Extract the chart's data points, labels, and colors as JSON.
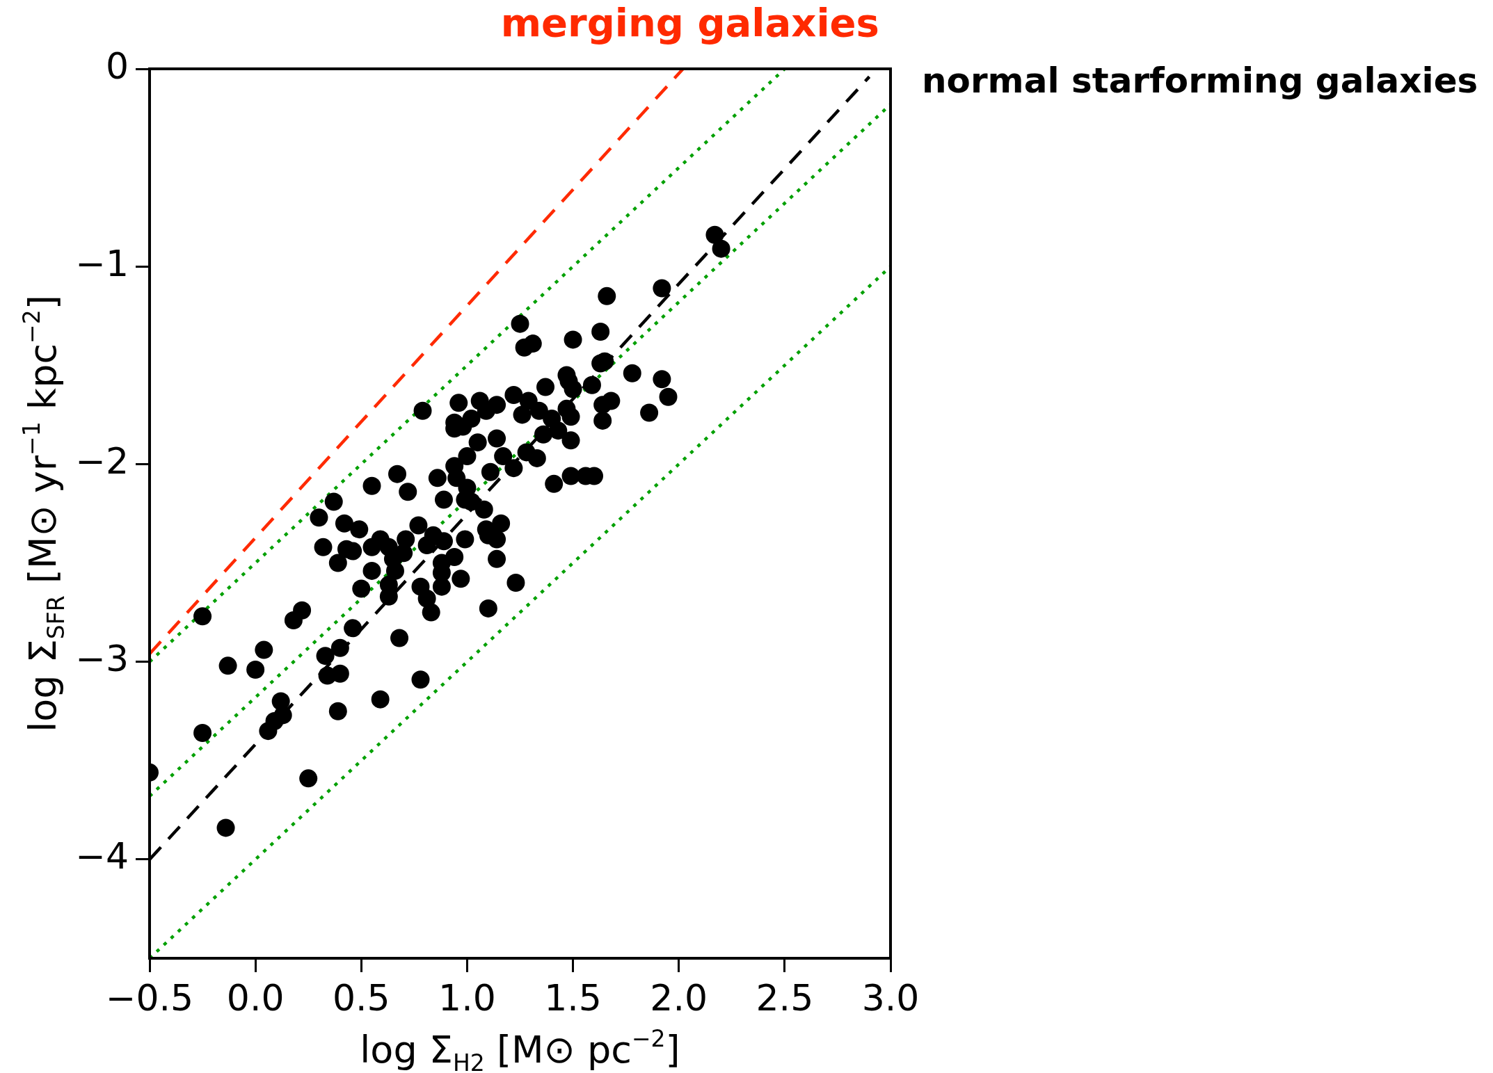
{
  "chart_data": {
    "type": "scatter",
    "xlabel": "log Σ$_{H2}$ [M⊙ pc$^{−2}$]",
    "ylabel": "log Σ$_{SFR}$ [M⊙ yr$^{−1}$ kpc$^{−2}$]",
    "xlim": [
      -0.5,
      3.0
    ],
    "ylim": [
      -4.5,
      0
    ],
    "xticks": [
      {
        "value": -0.5,
        "label": "−0.5"
      },
      {
        "value": 0,
        "label": "0.0"
      },
      {
        "value": 0.5,
        "label": "0.5"
      },
      {
        "value": 1,
        "label": "1.0"
      },
      {
        "value": 1.5,
        "label": "1.5"
      },
      {
        "value": 2,
        "label": "2.0"
      },
      {
        "value": 2.5,
        "label": "2.5"
      },
      {
        "value": 3,
        "label": "3.0"
      }
    ],
    "yticks": [
      {
        "value": -4,
        "label": "−4"
      },
      {
        "value": -3,
        "label": "−3"
      },
      {
        "value": -2,
        "label": "−2"
      },
      {
        "value": -1,
        "label": "−1"
      },
      {
        "value": 0,
        "label": "0"
      }
    ],
    "grid": false,
    "series": [
      {
        "color": "#000000",
        "marker": "circle",
        "x": [
          2.17,
          2.2,
          1.92,
          1.66,
          1.25,
          1.63,
          1.5,
          1.27,
          1.31,
          1.65,
          1.63,
          1.78,
          1.92,
          1.47,
          1.48,
          1.5,
          1.37,
          1.59,
          1.95,
          1.22,
          1.29,
          1.68,
          1.64,
          1.86,
          1.64,
          1.47,
          1.49,
          1.26,
          1.34,
          1.4,
          1.43,
          1.36,
          1.49,
          1.06,
          1.14,
          1.09,
          0.96,
          0.79,
          1.02,
          0.94,
          0.94,
          0.98,
          1.05,
          1.14,
          1.17,
          1.22,
          1.28,
          1.33,
          1.0,
          0.94,
          0.95,
          1.11,
          0.86,
          1.0,
          0.99,
          1.02,
          0.89,
          1.08,
          1.41,
          1.49,
          1.56,
          1.6,
          0.67,
          0.72,
          0.55,
          0.37,
          0.3,
          0.42,
          0.49,
          0.32,
          0.43,
          0.46,
          0.39,
          0.55,
          0.59,
          0.63,
          0.71,
          0.77,
          0.7,
          0.65,
          0.66,
          0.55,
          0.63,
          0.63,
          0.5,
          0.84,
          0.81,
          0.89,
          0.99,
          1.09,
          1.16,
          1.1,
          1.14,
          1.14,
          0.94,
          0.88,
          0.88,
          0.97,
          0.78,
          0.88,
          0.81,
          0.83,
          1.23,
          1.1,
          0.68,
          0.46,
          0.4,
          0.33,
          0.34,
          0.4,
          0.39,
          0.59,
          0.78,
          0.22,
          0.18,
          -0.25,
          -0.13,
          0.0,
          0.04,
          0.12,
          0.13,
          0.09,
          0.06,
          -0.25,
          0.25,
          -0.14,
          -0.5
        ],
        "values": [
          -0.84,
          -0.91,
          -1.11,
          -1.15,
          -1.29,
          -1.33,
          -1.37,
          -1.41,
          -1.39,
          -1.48,
          -1.49,
          -1.54,
          -1.57,
          -1.55,
          -1.58,
          -1.62,
          -1.61,
          -1.6,
          -1.66,
          -1.65,
          -1.68,
          -1.68,
          -1.7,
          -1.74,
          -1.78,
          -1.72,
          -1.76,
          -1.75,
          -1.73,
          -1.77,
          -1.83,
          -1.85,
          -1.88,
          -1.68,
          -1.7,
          -1.73,
          -1.69,
          -1.73,
          -1.77,
          -1.79,
          -1.82,
          -1.81,
          -1.89,
          -1.87,
          -1.96,
          -2.02,
          -1.94,
          -1.97,
          -1.96,
          -2.01,
          -2.07,
          -2.04,
          -2.07,
          -2.12,
          -2.18,
          -2.19,
          -2.18,
          -2.23,
          -2.1,
          -2.06,
          -2.06,
          -2.06,
          -2.05,
          -2.14,
          -2.11,
          -2.19,
          -2.27,
          -2.3,
          -2.33,
          -2.42,
          -2.43,
          -2.44,
          -2.5,
          -2.42,
          -2.38,
          -2.42,
          -2.38,
          -2.31,
          -2.45,
          -2.48,
          -2.54,
          -2.54,
          -2.61,
          -2.67,
          -2.63,
          -2.36,
          -2.41,
          -2.39,
          -2.38,
          -2.33,
          -2.3,
          -2.36,
          -2.38,
          -2.48,
          -2.47,
          -2.5,
          -2.55,
          -2.58,
          -2.62,
          -2.62,
          -2.68,
          -2.75,
          -2.6,
          -2.73,
          -2.88,
          -2.83,
          -2.93,
          -2.97,
          -3.07,
          -3.06,
          -3.25,
          -3.19,
          -3.09,
          -2.74,
          -2.79,
          -2.77,
          -3.02,
          -3.04,
          -2.94,
          -3.2,
          -3.27,
          -3.3,
          -3.35,
          -3.36,
          -3.59,
          -3.84,
          -3.56
        ]
      },
      {
        "type": "line",
        "name": "merging galaxies",
        "color": "#ff2a00",
        "line_style": "dashed",
        "marker": "none",
        "x": [
          -0.5,
          2.02
        ],
        "values": [
          -2.96,
          0
        ]
      },
      {
        "type": "line",
        "name": "normal starforming galaxies",
        "color": "#000000",
        "line_style": "dashed",
        "marker": "none",
        "x": [
          -0.5,
          2.9
        ],
        "values": [
          -4.0,
          -0.04
        ]
      },
      {
        "type": "line",
        "color": "#00a000",
        "line_style": "dotted",
        "marker": "none",
        "x": [
          -0.5,
          2.5
        ],
        "values": [
          -3.0,
          0
        ]
      },
      {
        "type": "line",
        "color": "#00a000",
        "line_style": "dotted",
        "marker": "none",
        "x": [
          -0.5,
          3.0
        ],
        "values": [
          -3.68,
          -0.18
        ]
      },
      {
        "type": "line",
        "color": "#00a000",
        "line_style": "dotted",
        "marker": "none",
        "x": [
          -0.5,
          3.0
        ],
        "values": [
          -4.5,
          -1.0
        ]
      }
    ]
  }
}
